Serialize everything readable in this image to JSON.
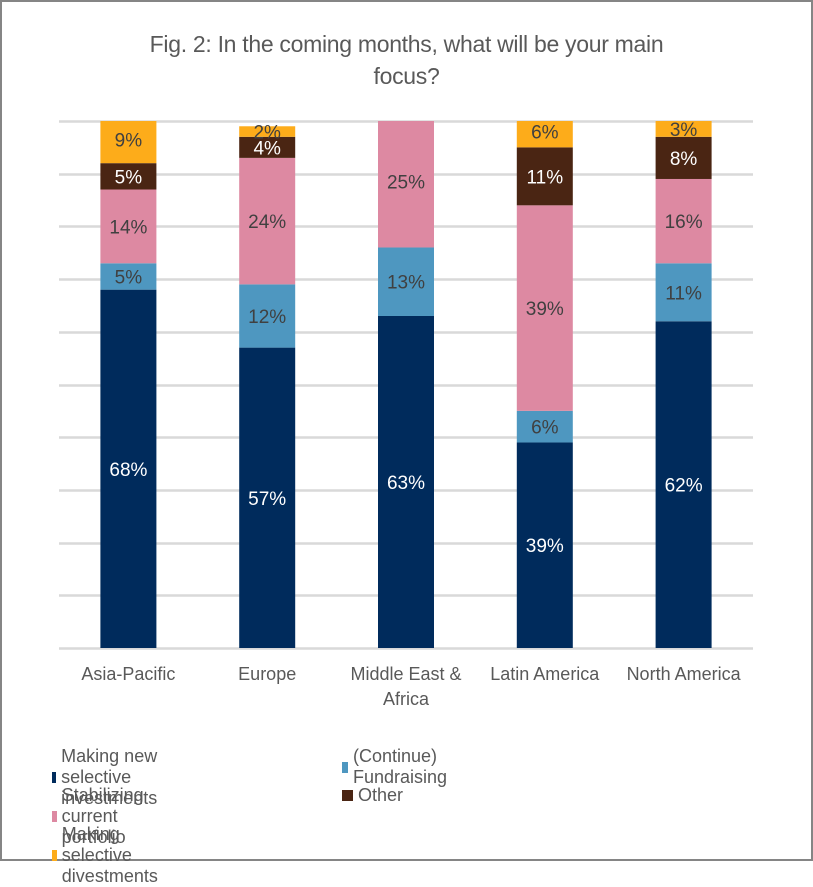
{
  "chart_data": {
    "type": "bar",
    "stacked": true,
    "title": "Fig. 2: In the coming months, what will be your main focus?",
    "title_lines": [
      "Fig. 2: In the coming months, what will be your main",
      "focus?"
    ],
    "xlabel": "",
    "ylabel": "",
    "ylim": [
      0,
      100
    ],
    "y_unit": "%",
    "grid": true,
    "y_tick_labels_shown": false,
    "gridline_step": 10,
    "legend_position": "bottom",
    "categories": [
      "Asia-Pacific",
      "Europe",
      "Middle East & Africa",
      "Latin America",
      "North America"
    ],
    "category_label_lines": [
      [
        "Asia-Pacific"
      ],
      [
        "Europe"
      ],
      [
        "Middle East &",
        "Africa"
      ],
      [
        "Latin America"
      ],
      [
        "North America"
      ]
    ],
    "series": [
      {
        "name": "Making new selective investments",
        "color": "#002b5c",
        "label_color": "#ffffff",
        "values": [
          68,
          57,
          63,
          39,
          62
        ]
      },
      {
        "name": "(Continue) Fundraising",
        "color": "#4e97c0",
        "label_color": "#404040",
        "values": [
          5,
          12,
          13,
          6,
          11
        ]
      },
      {
        "name": "Stabilizing current portfolio",
        "color": "#dd89a2",
        "label_color": "#404040",
        "values": [
          14,
          24,
          25,
          39,
          16
        ]
      },
      {
        "name": "Other",
        "color": "#4a2513",
        "label_color": "#ffffff",
        "values": [
          5,
          4,
          0,
          11,
          8
        ]
      },
      {
        "name": "Making selective divestments",
        "color": "#fdac1a",
        "label_color": "#404040",
        "values": [
          9,
          2,
          0,
          6,
          3
        ]
      }
    ],
    "data_label_suffix": "%"
  },
  "legend_rows": [
    [
      0,
      1
    ],
    [
      2,
      3
    ],
    [
      4
    ]
  ]
}
